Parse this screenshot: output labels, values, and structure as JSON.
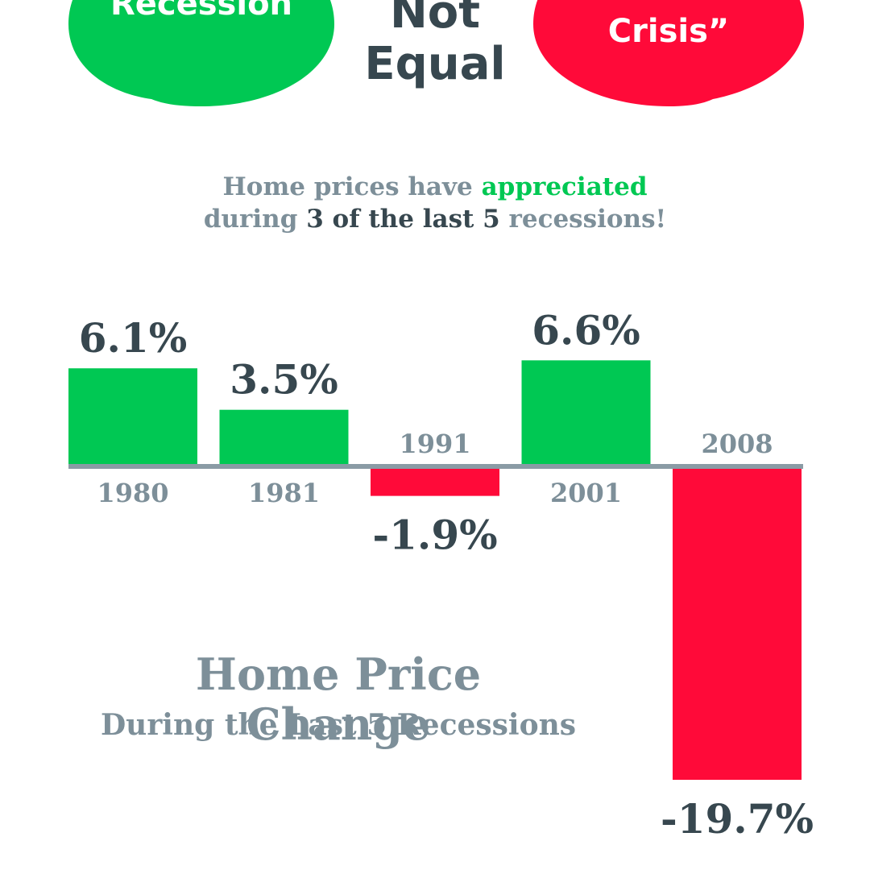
{
  "bubbles": {
    "left": {
      "text": "Recession",
      "color": "#00c853"
    },
    "center": {
      "line1": "Not",
      "line2": "Equal"
    },
    "right": {
      "text": "Crisis”",
      "color": "#ff0a39"
    }
  },
  "subtitle": {
    "line1_prefix": "Home prices have ",
    "line1_highlight": "appreciated",
    "line2_prefix": "during ",
    "line2_count": "3 of the last 5",
    "line2_suffix": " recessions!"
  },
  "colors": {
    "positive": "#00c853",
    "negative": "#ff0a39",
    "axis": "#8a9ba5",
    "value_text": "#37474f",
    "label_text": "#7d8f99"
  },
  "chart_data": {
    "type": "bar",
    "title": "Home Price Change",
    "subtitle": "During the Last 5 Recessions",
    "categories": [
      "1980",
      "1981",
      "1991",
      "2001",
      "2008"
    ],
    "values": [
      6.1,
      3.5,
      -1.9,
      6.6,
      -19.7
    ],
    "value_labels": [
      "6.1%",
      "3.5%",
      "-1.9%",
      "6.6%",
      "-19.7%"
    ],
    "unit": "%",
    "grid": false,
    "legend": "none"
  }
}
